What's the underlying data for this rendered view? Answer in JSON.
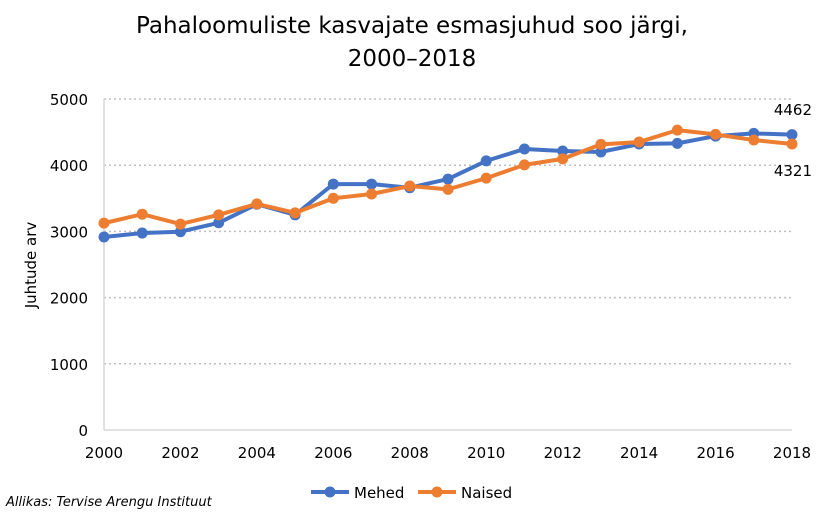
{
  "chart_data": {
    "type": "line",
    "title_line1": "Pahaloomuliste kasvajate esmasjuhud soo järgi,",
    "title_line2": "2000–2018",
    "xlabel": "",
    "ylabel": "Juhtude arv",
    "ylim": [
      0,
      5000
    ],
    "yticks": [
      "0",
      "1000",
      "2000",
      "3000",
      "4000",
      "5000"
    ],
    "x": [
      2000,
      2001,
      2002,
      2003,
      2004,
      2005,
      2006,
      2007,
      2008,
      2009,
      2010,
      2011,
      2012,
      2013,
      2014,
      2015,
      2016,
      2017,
      2018
    ],
    "xticks": [
      "2000",
      "2002",
      "2004",
      "2006",
      "2008",
      "2010",
      "2012",
      "2014",
      "2016",
      "2018"
    ],
    "grid": true,
    "legend": "bottom",
    "series": [
      {
        "name": "Mehed",
        "color": "#4472C4",
        "values": [
          2915,
          2975,
          2995,
          3130,
          3410,
          3250,
          3715,
          3715,
          3660,
          3790,
          4065,
          4245,
          4215,
          4200,
          4320,
          4330,
          4440,
          4480,
          4462
        ],
        "end_label": "4462"
      },
      {
        "name": "Naised",
        "color": "#ED7D31",
        "values": [
          3125,
          3260,
          3110,
          3250,
          3415,
          3280,
          3500,
          3565,
          3685,
          3635,
          3805,
          4005,
          4095,
          4315,
          4350,
          4530,
          4465,
          4380,
          4321
        ],
        "end_label": "4321"
      }
    ],
    "source": "Allikas: Tervise Arengu Instituut"
  }
}
